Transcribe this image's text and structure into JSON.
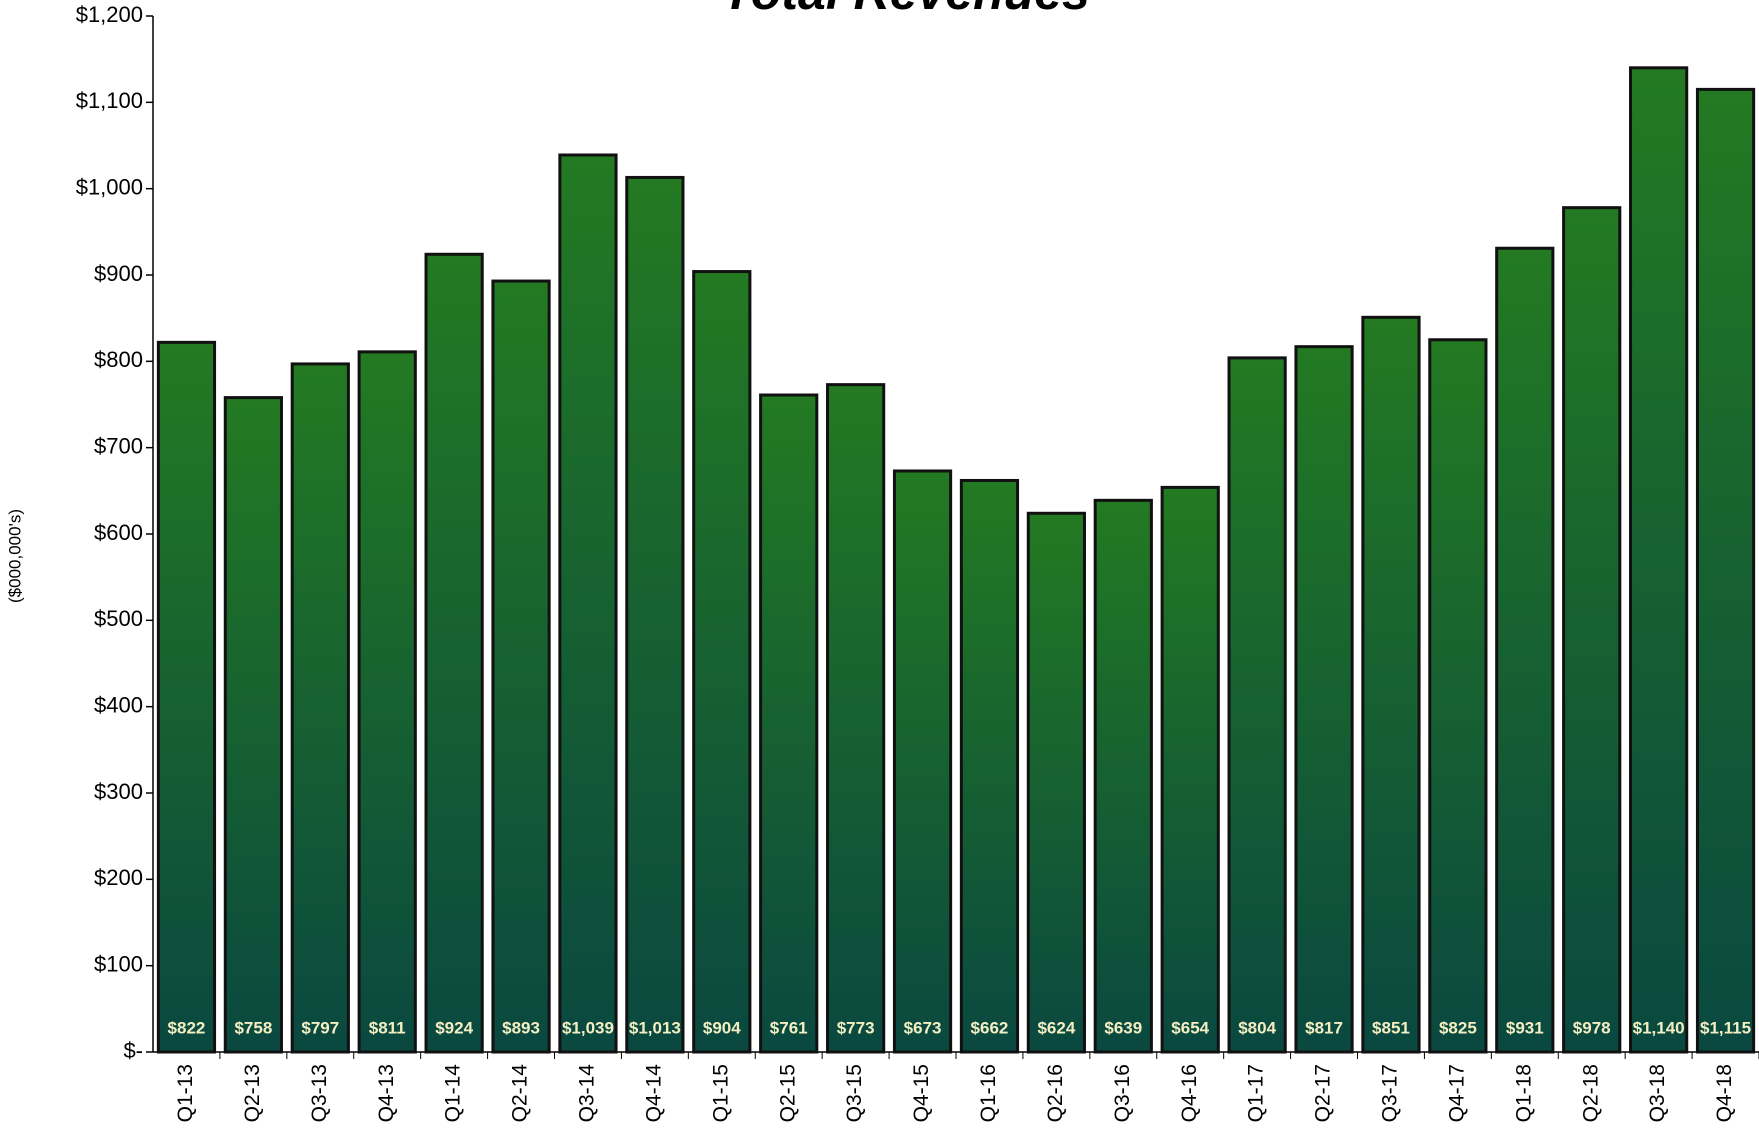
{
  "chart_data": {
    "type": "bar",
    "title": "Total Revenues",
    "y_label": "($000,000's)",
    "categories": [
      "Q1-13",
      "Q2-13",
      "Q3-13",
      "Q4-13",
      "Q1-14",
      "Q2-14",
      "Q3-14",
      "Q4-14",
      "Q1-15",
      "Q2-15",
      "Q3-15",
      "Q4-15",
      "Q1-16",
      "Q2-16",
      "Q3-16",
      "Q4-16",
      "Q1-17",
      "Q2-17",
      "Q3-17",
      "Q4-17",
      "Q1-18",
      "Q2-18",
      "Q3-18",
      "Q4-18"
    ],
    "values": [
      822,
      758,
      797,
      811,
      924,
      893,
      1039,
      1013,
      904,
      761,
      773,
      673,
      662,
      624,
      639,
      654,
      804,
      817,
      851,
      825,
      931,
      978,
      1140,
      1115
    ],
    "value_labels": [
      "$822",
      "$758",
      "$797",
      "$811",
      "$924",
      "$893",
      "$1,039",
      "$1,013",
      "$904",
      "$761",
      "$773",
      "$673",
      "$662",
      "$624",
      "$639",
      "$654",
      "$804",
      "$817",
      "$851",
      "$825",
      "$931",
      "$978",
      "$1,140",
      "$1,115"
    ],
    "color": "#237a22",
    "ylim": [
      0,
      1200
    ],
    "yticks": [
      {
        "value": 0,
        "label": "$-"
      },
      {
        "value": 100,
        "label": "$100"
      },
      {
        "value": 200,
        "label": "$200"
      },
      {
        "value": 300,
        "label": "$300"
      },
      {
        "value": 400,
        "label": "$400"
      },
      {
        "value": 500,
        "label": "$500"
      },
      {
        "value": 600,
        "label": "$600"
      },
      {
        "value": 700,
        "label": "$700"
      },
      {
        "value": 800,
        "label": "$800"
      },
      {
        "value": 900,
        "label": "$900"
      },
      {
        "value": 1000,
        "label": "$1,000"
      },
      {
        "value": 1100,
        "label": "$1,100"
      },
      {
        "value": 1200,
        "label": "$1,200"
      }
    ],
    "grid": false
  }
}
